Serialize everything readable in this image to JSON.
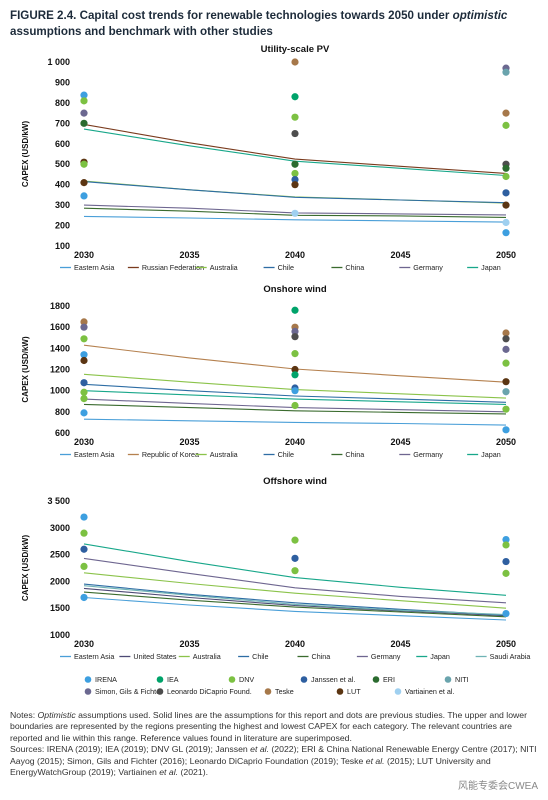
{
  "figure": {
    "title_prefix": "FIGURE 2.4. Capital cost trends for renewable technologies towards 2050 under ",
    "title_italic": "optimistic",
    "title_suffix": " assumptions and benchmark with other studies"
  },
  "colors": {
    "Eastern Asia": "#4a9fd8",
    "Russian Federation": "#7a3b1e",
    "Republic of Korea": "#b5814f",
    "United States": "#4d4a75",
    "Australia": "#8bc34a",
    "Chile": "#2e6da4",
    "China": "#3a6b2e",
    "Germany": "#6e6690",
    "Japan": "#18a78a",
    "Saudi Arabia": "#6fb3b5",
    "IRENA": "#3d9fe0",
    "IEA": "#00a36a",
    "DNV": "#7cc142",
    "Janssen et al.": "#2e5fa0",
    "ERI": "#2b6b2f",
    "NITI": "#6aa4ad",
    "Simon, Gils & Fichter": "#6b6890",
    "Leonardo DiCaprio Found.": "#4d4d4d",
    "Teske": "#a6784a",
    "LUT": "#5b3512",
    "Vartiainen et al.": "#9fd0f0"
  },
  "chart_data": [
    {
      "type": "line",
      "title": "Utility-scale PV",
      "ylabel": "CAPEX (USD/kW)",
      "xlabel": "",
      "x": [
        2030,
        2035,
        2040,
        2045,
        2050
      ],
      "xticks": [
        "2030",
        "2035",
        "2040",
        "2045",
        "2050"
      ],
      "ylim": [
        100,
        1000
      ],
      "yticks": [
        "100",
        "200",
        "300",
        "400",
        "500",
        "600",
        "700",
        "800",
        "900",
        "1 000"
      ],
      "series": [
        {
          "name": "Eastern Asia",
          "values": [
            245,
            237,
            228,
            223,
            217
          ]
        },
        {
          "name": "Russian Federation",
          "values": [
            695,
            605,
            525,
            490,
            455
          ]
        },
        {
          "name": "Australia",
          "values": [
            418,
            375,
            340,
            325,
            310
          ]
        },
        {
          "name": "Chile",
          "values": [
            415,
            375,
            338,
            325,
            312
          ]
        },
        {
          "name": "China",
          "values": [
            285,
            270,
            250,
            247,
            240
          ]
        },
        {
          "name": "Germany",
          "values": [
            300,
            285,
            262,
            257,
            252
          ]
        },
        {
          "name": "Japan",
          "values": [
            672,
            590,
            515,
            480,
            445
          ]
        }
      ],
      "studies": [
        {
          "x": 2030,
          "y": 838,
          "study": "IRENA"
        },
        {
          "x": 2030,
          "y": 810,
          "study": "DNV"
        },
        {
          "x": 2030,
          "y": 750,
          "study": "Simon, Gils & Fichter"
        },
        {
          "x": 2030,
          "y": 700,
          "study": "ERI"
        },
        {
          "x": 2030,
          "y": 510,
          "study": "LUT"
        },
        {
          "x": 2030,
          "y": 500,
          "study": "DNV"
        },
        {
          "x": 2030,
          "y": 410,
          "study": "LUT"
        },
        {
          "x": 2030,
          "y": 345,
          "study": "IRENA"
        },
        {
          "x": 2040,
          "y": 1000,
          "study": "Teske"
        },
        {
          "x": 2040,
          "y": 830,
          "study": "IEA"
        },
        {
          "x": 2040,
          "y": 730,
          "study": "DNV"
        },
        {
          "x": 2040,
          "y": 650,
          "study": "Leonardo DiCaprio Found."
        },
        {
          "x": 2040,
          "y": 500,
          "study": "ERI"
        },
        {
          "x": 2040,
          "y": 455,
          "study": "DNV"
        },
        {
          "x": 2040,
          "y": 425,
          "study": "Janssen et al."
        },
        {
          "x": 2040,
          "y": 400,
          "study": "LUT"
        },
        {
          "x": 2040,
          "y": 260,
          "study": "Vartiainen et al."
        },
        {
          "x": 2050,
          "y": 970,
          "study": "Simon, Gils & Fichter"
        },
        {
          "x": 2050,
          "y": 950,
          "study": "NITI"
        },
        {
          "x": 2050,
          "y": 750,
          "study": "Teske"
        },
        {
          "x": 2050,
          "y": 690,
          "study": "DNV"
        },
        {
          "x": 2050,
          "y": 500,
          "study": "Leonardo DiCaprio Found."
        },
        {
          "x": 2050,
          "y": 480,
          "study": "ERI"
        },
        {
          "x": 2050,
          "y": 440,
          "study": "DNV"
        },
        {
          "x": 2050,
          "y": 360,
          "study": "Janssen et al."
        },
        {
          "x": 2050,
          "y": 300,
          "study": "LUT"
        },
        {
          "x": 2050,
          "y": 215,
          "study": "Vartiainen et al."
        },
        {
          "x": 2050,
          "y": 165,
          "study": "IRENA"
        }
      ]
    },
    {
      "type": "line",
      "title": "Onshore wind",
      "ylabel": "CAPEX (USD/kW)",
      "xlabel": "",
      "x": [
        2030,
        2035,
        2040,
        2045,
        2050
      ],
      "xticks": [
        "2030",
        "2035",
        "2040",
        "2045",
        "2050"
      ],
      "ylim": [
        600,
        1800
      ],
      "yticks": [
        "600",
        "800",
        "1000",
        "1200",
        "1400",
        "1600",
        "1800"
      ],
      "series": [
        {
          "name": "Eastern Asia",
          "values": [
            730,
            715,
            700,
            690,
            675
          ]
        },
        {
          "name": "Republic of Korea",
          "values": [
            1430,
            1310,
            1205,
            1140,
            1080
          ]
        },
        {
          "name": "Australia",
          "values": [
            1155,
            1080,
            1010,
            970,
            930
          ]
        },
        {
          "name": "Chile",
          "values": [
            1060,
            1000,
            950,
            920,
            890
          ]
        },
        {
          "name": "China",
          "values": [
            870,
            840,
            810,
            795,
            780
          ]
        },
        {
          "name": "Germany",
          "values": [
            920,
            880,
            840,
            820,
            800
          ]
        },
        {
          "name": "Japan",
          "values": [
            1000,
            960,
            920,
            895,
            870
          ]
        }
      ],
      "studies": [
        {
          "x": 2030,
          "y": 1650,
          "study": "Teske"
        },
        {
          "x": 2030,
          "y": 1600,
          "study": "Simon, Gils & Fichter"
        },
        {
          "x": 2030,
          "y": 1490,
          "study": "DNV"
        },
        {
          "x": 2030,
          "y": 1340,
          "study": "IRENA"
        },
        {
          "x": 2030,
          "y": 1285,
          "study": "LUT"
        },
        {
          "x": 2030,
          "y": 1075,
          "study": "Janssen et al."
        },
        {
          "x": 2030,
          "y": 985,
          "study": "DNV"
        },
        {
          "x": 2030,
          "y": 925,
          "study": "DNV"
        },
        {
          "x": 2030,
          "y": 790,
          "study": "IRENA"
        },
        {
          "x": 2040,
          "y": 1760,
          "study": "IEA"
        },
        {
          "x": 2040,
          "y": 1600,
          "study": "Teske"
        },
        {
          "x": 2040,
          "y": 1560,
          "study": "Simon, Gils & Fichter"
        },
        {
          "x": 2040,
          "y": 1510,
          "study": "Leonardo DiCaprio Found."
        },
        {
          "x": 2040,
          "y": 1350,
          "study": "DNV"
        },
        {
          "x": 2040,
          "y": 1200,
          "study": "LUT"
        },
        {
          "x": 2040,
          "y": 1150,
          "study": "IEA"
        },
        {
          "x": 2040,
          "y": 1025,
          "study": "Janssen et al."
        },
        {
          "x": 2040,
          "y": 1000,
          "study": "IRENA"
        },
        {
          "x": 2040,
          "y": 860,
          "study": "DNV"
        },
        {
          "x": 2050,
          "y": 1545,
          "study": "Teske"
        },
        {
          "x": 2050,
          "y": 1490,
          "study": "Leonardo DiCaprio Found."
        },
        {
          "x": 2050,
          "y": 1390,
          "study": "Simon, Gils & Fichter"
        },
        {
          "x": 2050,
          "y": 1260,
          "study": "DNV"
        },
        {
          "x": 2050,
          "y": 1085,
          "study": "LUT"
        },
        {
          "x": 2050,
          "y": 990,
          "study": "NITI"
        },
        {
          "x": 2050,
          "y": 825,
          "study": "DNV"
        },
        {
          "x": 2050,
          "y": 630,
          "study": "IRENA"
        }
      ]
    },
    {
      "type": "line",
      "title": "Offshore wind",
      "ylabel": "CAPEX (USD/kW)",
      "xlabel": "",
      "x": [
        2030,
        2035,
        2040,
        2045,
        2050
      ],
      "xticks": [
        "2030",
        "2035",
        "2040",
        "2045",
        "2050"
      ],
      "ylim": [
        1000,
        3500
      ],
      "yticks": [
        "1000",
        "1500",
        "2000",
        "2500",
        "3000",
        "3 500"
      ],
      "series": [
        {
          "name": "Eastern Asia",
          "values": [
            1700,
            1560,
            1440,
            1360,
            1280
          ]
        },
        {
          "name": "United States",
          "values": [
            1870,
            1700,
            1550,
            1450,
            1360
          ]
        },
        {
          "name": "Australia",
          "values": [
            2160,
            1960,
            1780,
            1640,
            1500
          ]
        },
        {
          "name": "Chile",
          "values": [
            1950,
            1760,
            1600,
            1480,
            1370
          ]
        },
        {
          "name": "China",
          "values": [
            1800,
            1650,
            1520,
            1430,
            1340
          ]
        },
        {
          "name": "Germany",
          "values": [
            2430,
            2150,
            1880,
            1720,
            1600
          ]
        },
        {
          "name": "Japan",
          "values": [
            2700,
            2370,
            2070,
            1890,
            1740
          ]
        },
        {
          "name": "Saudi Arabia",
          "values": [
            1920,
            1740,
            1570,
            1460,
            1380
          ]
        }
      ],
      "studies": [
        {
          "x": 2030,
          "y": 3200,
          "study": "IRENA"
        },
        {
          "x": 2030,
          "y": 2900,
          "study": "DNV"
        },
        {
          "x": 2030,
          "y": 2600,
          "study": "Janssen et al."
        },
        {
          "x": 2030,
          "y": 2280,
          "study": "DNV"
        },
        {
          "x": 2030,
          "y": 1700,
          "study": "IRENA"
        },
        {
          "x": 2040,
          "y": 2770,
          "study": "DNV"
        },
        {
          "x": 2040,
          "y": 2430,
          "study": "Janssen et al."
        },
        {
          "x": 2040,
          "y": 2200,
          "study": "DNV"
        },
        {
          "x": 2050,
          "y": 2780,
          "study": "IRENA"
        },
        {
          "x": 2050,
          "y": 2680,
          "study": "DNV"
        },
        {
          "x": 2050,
          "y": 2370,
          "study": "Janssen et al."
        },
        {
          "x": 2050,
          "y": 2150,
          "study": "DNV"
        },
        {
          "x": 2050,
          "y": 1400,
          "study": "IRENA"
        }
      ]
    }
  ],
  "study_legend": [
    [
      "IRENA",
      "IEA",
      "DNV",
      "Janssen et al.",
      "ERI",
      "NITI"
    ],
    [
      "Simon, Gils & Fichter",
      "Leonardo DiCaprio Found.",
      "Teske",
      "LUT",
      "Vartiainen et al."
    ]
  ],
  "notes": {
    "line1_italic": "Optimistic",
    "line1_rest": " assumptions used. Solid lines are the assumptions for this report and dots are previous studies. The upper and lower boundaries are represented by the regions presenting the highest and lowest CAPEX for each category. The relevant countries are reported and lie within this range. Reference values found in literature are superimposed.",
    "sources_a": "Sources: IRENA (2019); IEA (2019); DNV GL (2019); Janssen ",
    "sources_ital1": "et al.",
    "sources_b": " (2022); ERI & China National Renewable Energy Centre (2017); NITI Aayog (2015); Simon, Gils and Fichter (2016); Leonardo DiCaprio Foundation (2019); Teske ",
    "sources_ital2": "et al.",
    "sources_c": " (2015); LUT University and EnergyWatchGroup (2019); Vartiainen ",
    "sources_ital3": "et al.",
    "sources_d": " (2021)."
  },
  "watermark": "风能专委会CWEA"
}
